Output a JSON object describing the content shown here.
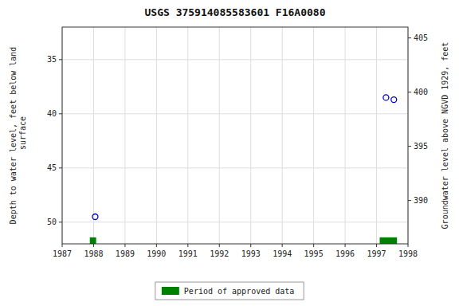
{
  "chart_data": {
    "type": "scatter",
    "title": "USGS 375914085583601 F16A0080",
    "y_label": "Depth to water level, feet below land\n surface",
    "y2_label": "Groundwater level above NGVD 1929, feet",
    "xlim": [
      1987,
      1998
    ],
    "xticks": [
      1987,
      1988,
      1989,
      1990,
      1991,
      1992,
      1993,
      1994,
      1995,
      1996,
      1997,
      1998
    ],
    "ylim": [
      52,
      32
    ],
    "yticks": [
      35,
      40,
      45,
      50
    ],
    "y2lim": [
      386,
      406
    ],
    "y2ticks": [
      390,
      395,
      400,
      405
    ],
    "grid": true,
    "legend": "bottom",
    "series": [
      {
        "type": "scatter",
        "color": "#0000cc",
        "marker": "circle-open",
        "x": [
          1988.05,
          1997.3,
          1997.55
        ],
        "values": [
          49.5,
          38.5,
          38.7
        ]
      },
      {
        "type": "span",
        "name": "Period of approved data",
        "color": "#008000",
        "x_start": [
          1987.88,
          1997.1
        ],
        "x_end": [
          1988.08,
          1997.65
        ]
      }
    ]
  }
}
